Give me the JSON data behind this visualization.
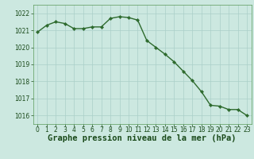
{
  "x": [
    0,
    1,
    2,
    3,
    4,
    5,
    6,
    7,
    8,
    9,
    10,
    11,
    12,
    13,
    14,
    15,
    16,
    17,
    18,
    19,
    20,
    21,
    22,
    23
  ],
  "y": [
    1020.9,
    1021.3,
    1021.5,
    1021.4,
    1021.1,
    1021.1,
    1021.2,
    1021.2,
    1021.7,
    1021.8,
    1021.75,
    1021.6,
    1020.4,
    1020.0,
    1019.6,
    1019.15,
    1018.6,
    1018.05,
    1017.4,
    1016.6,
    1016.55,
    1016.35,
    1016.35,
    1016.0
  ],
  "line_color": "#2d6a2d",
  "marker": "D",
  "marker_size": 2.2,
  "bg_color": "#cce8e0",
  "grid_color": "#aacfc8",
  "title": "Graphe pression niveau de la mer (hPa)",
  "title_fontsize": 7.5,
  "tick_color": "#1a4a1a",
  "ylim": [
    1015.5,
    1022.5
  ],
  "yticks": [
    1016,
    1017,
    1018,
    1019,
    1020,
    1021,
    1022
  ],
  "xtick_labels": [
    "0",
    "1",
    "2",
    "3",
    "4",
    "5",
    "6",
    "7",
    "8",
    "9",
    "10",
    "11",
    "12",
    "13",
    "14",
    "15",
    "16",
    "17",
    "18",
    "19",
    "20",
    "21",
    "22",
    "23"
  ],
  "tick_fontsize": 5.5,
  "line_width": 1.0,
  "spine_color": "#5a9a5a"
}
